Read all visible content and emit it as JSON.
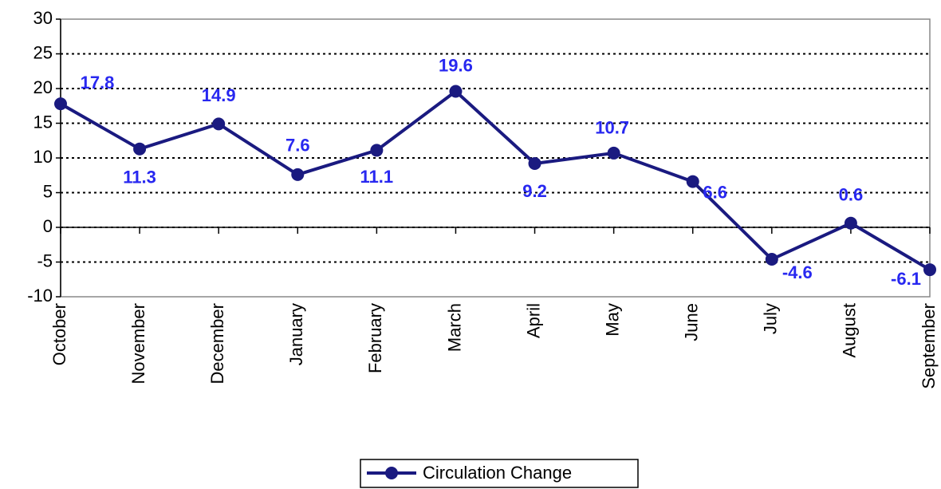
{
  "chart_data": {
    "type": "line",
    "categories": [
      "October",
      "November",
      "December",
      "January",
      "February",
      "March",
      "April",
      "May",
      "June",
      "July",
      "August",
      "September"
    ],
    "series": [
      {
        "name": "Circulation Change",
        "color": "#1a1a80",
        "values": [
          17.8,
          11.3,
          14.9,
          7.6,
          11.1,
          19.6,
          9.2,
          10.7,
          6.6,
          -4.6,
          0.6,
          -6.1
        ]
      }
    ],
    "ylim": [
      -10,
      30
    ],
    "yticks": [
      -10,
      -5,
      0,
      5,
      10,
      15,
      20,
      25,
      30
    ],
    "grid": true,
    "legend": "bottom"
  }
}
